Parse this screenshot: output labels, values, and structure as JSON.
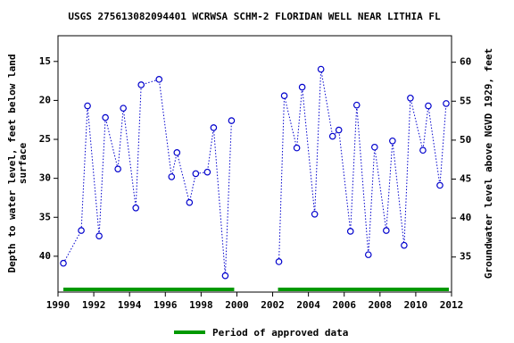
{
  "chart_data": {
    "type": "line",
    "title": "USGS 275613082094401 WCRWSA SCHM-2 FLORIDAN WELL NEAR LITHIA FL",
    "ylabel": [
      "Depth to water level, feet below land",
      "surface"
    ],
    "y2label": "Groundwater level above NGVD 1929, feet",
    "x": [
      1990.3,
      1991.3,
      1991.65,
      1992.3,
      1992.65,
      1993.35,
      1993.65,
      1994.35,
      1994.65,
      1995.65,
      1996.35,
      1996.65,
      1997.35,
      1997.7,
      1998.35,
      1998.7,
      1999.35,
      1999.7,
      null,
      2002.35,
      2002.65,
      2003.35,
      2003.65,
      2004.35,
      2004.7,
      2005.35,
      2005.7,
      2006.35,
      2006.7,
      2007.35,
      2007.7,
      2008.35,
      2008.7,
      2009.35,
      2009.7,
      2010.4,
      2010.7,
      2011.35,
      2011.7
    ],
    "values": [
      40.9,
      36.7,
      20.7,
      37.4,
      22.2,
      28.8,
      21.0,
      33.8,
      18.0,
      17.3,
      29.8,
      26.7,
      33.1,
      29.4,
      29.2,
      23.5,
      42.5,
      22.6,
      null,
      40.7,
      19.4,
      26.1,
      18.3,
      34.6,
      16.0,
      24.6,
      23.8,
      36.8,
      20.6,
      39.8,
      26.0,
      36.7,
      25.2,
      38.6,
      19.7,
      26.4,
      20.7,
      30.9,
      20.4
    ],
    "color": "#0000cc",
    "xlim": [
      1990,
      2012
    ],
    "xticks": [
      1990,
      1992,
      1994,
      1996,
      1998,
      2000,
      2002,
      2004,
      2006,
      2008,
      2010,
      2012
    ],
    "ylim": [
      44.6,
      11.7
    ],
    "yticks": [
      15,
      20,
      25,
      30,
      35,
      40
    ],
    "y2lim": [
      30.5,
      63.4
    ],
    "y2ticks": [
      35,
      40,
      45,
      50,
      55,
      60
    ],
    "approved_periods": [
      [
        1990.3,
        1999.85
      ],
      [
        2002.3,
        2011.85
      ]
    ],
    "approved_color": "#009900",
    "approved_label": "Period of approved data"
  }
}
